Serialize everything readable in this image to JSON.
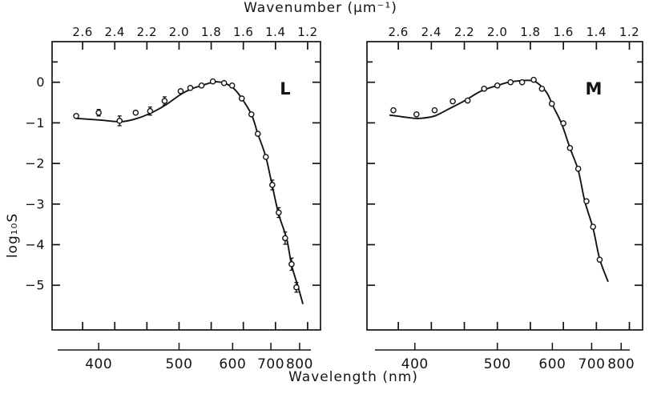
{
  "figure": {
    "top_axis_title": "Wavenumber (μm⁻¹)",
    "bottom_axis_title": "Wavelength (nm)",
    "y_axis_title": "log₁₀S",
    "panel_left_label": "L",
    "panel_right_label": "M",
    "ink_color": "#141414",
    "background_color": "#ffffff"
  },
  "chart_data": [
    {
      "type": "scatter",
      "panel": "L",
      "top_axis_title": "Wavenumber (μm⁻¹)",
      "bottom_axis_title": "Wavelength (nm)",
      "ylabel": "log10 S",
      "x_unit": "μm⁻¹",
      "top_ticks": [
        2.6,
        2.4,
        2.2,
        2.0,
        1.8,
        1.6,
        1.4,
        1.2
      ],
      "y_ticks": [
        0,
        -1,
        -2,
        -3,
        -4,
        -5
      ],
      "y_minor_ticks": [
        0.5
      ],
      "wavelength_ticks": [
        400,
        500,
        600,
        700,
        800
      ],
      "xlim": [
        2.79,
        1.12
      ],
      "ylim": [
        -6.1,
        1.0
      ],
      "grid": false,
      "points": [
        {
          "wavenumber": 2.64,
          "log10S": -0.83,
          "err": 0
        },
        {
          "wavenumber": 2.5,
          "log10S": -0.75,
          "err": 0.08
        },
        {
          "wavenumber": 2.37,
          "log10S": -0.95,
          "err": 0.12
        },
        {
          "wavenumber": 2.27,
          "log10S": -0.75,
          "err": 0
        },
        {
          "wavenumber": 2.18,
          "log10S": -0.71,
          "err": 0.1
        },
        {
          "wavenumber": 2.09,
          "log10S": -0.46,
          "err": 0.1
        },
        {
          "wavenumber": 1.99,
          "log10S": -0.22,
          "err": 0
        },
        {
          "wavenumber": 1.93,
          "log10S": -0.14,
          "err": 0
        },
        {
          "wavenumber": 1.86,
          "log10S": -0.08,
          "err": 0
        },
        {
          "wavenumber": 1.79,
          "log10S": 0.02,
          "err": 0
        },
        {
          "wavenumber": 1.72,
          "log10S": -0.02,
          "err": 0
        },
        {
          "wavenumber": 1.67,
          "log10S": -0.08,
          "err": 0
        },
        {
          "wavenumber": 1.61,
          "log10S": -0.4,
          "err": 0
        },
        {
          "wavenumber": 1.55,
          "log10S": -0.79,
          "err": 0
        },
        {
          "wavenumber": 1.51,
          "log10S": -1.27,
          "err": 0
        },
        {
          "wavenumber": 1.46,
          "log10S": -1.84,
          "err": 0
        },
        {
          "wavenumber": 1.42,
          "log10S": -2.53,
          "err": 0.12
        },
        {
          "wavenumber": 1.38,
          "log10S": -3.21,
          "err": 0.12
        },
        {
          "wavenumber": 1.34,
          "log10S": -3.84,
          "err": 0.15
        },
        {
          "wavenumber": 1.3,
          "log10S": -4.48,
          "err": 0.15
        },
        {
          "wavenumber": 1.27,
          "log10S": -5.05,
          "err": 0.12
        }
      ],
      "curve": [
        [
          2.64,
          -0.89
        ],
        [
          2.49,
          -0.93
        ],
        [
          2.36,
          -0.97
        ],
        [
          2.26,
          -0.89
        ],
        [
          2.16,
          -0.73
        ],
        [
          2.08,
          -0.55
        ],
        [
          1.99,
          -0.3
        ],
        [
          1.92,
          -0.16
        ],
        [
          1.86,
          -0.08
        ],
        [
          1.79,
          0.0
        ],
        [
          1.76,
          0.01
        ],
        [
          1.72,
          -0.02
        ],
        [
          1.67,
          -0.12
        ],
        [
          1.62,
          -0.34
        ],
        [
          1.55,
          -0.79
        ],
        [
          1.51,
          -1.27
        ],
        [
          1.46,
          -1.84
        ],
        [
          1.42,
          -2.55
        ],
        [
          1.38,
          -3.25
        ],
        [
          1.33,
          -3.86
        ],
        [
          1.3,
          -4.5
        ],
        [
          1.26,
          -5.03
        ],
        [
          1.23,
          -5.45
        ]
      ]
    },
    {
      "type": "scatter",
      "panel": "M",
      "top_axis_title": "Wavenumber (μm⁻¹)",
      "bottom_axis_title": "Wavelength (nm)",
      "ylabel": "log10 S",
      "x_unit": "μm⁻¹",
      "top_ticks": [
        2.6,
        2.4,
        2.2,
        2.0,
        1.8,
        1.6,
        1.4,
        1.2
      ],
      "y_ticks": [
        0,
        -1,
        -2,
        -3,
        -4,
        -5
      ],
      "y_minor_ticks": [
        0.5
      ],
      "wavelength_ticks": [
        400,
        500,
        600,
        700,
        800
      ],
      "xlim": [
        2.79,
        1.12
      ],
      "ylim": [
        -6.1,
        1.0
      ],
      "grid": false,
      "points": [
        {
          "wavenumber": 2.63,
          "log10S": -0.69,
          "err": 0
        },
        {
          "wavenumber": 2.49,
          "log10S": -0.79,
          "err": 0
        },
        {
          "wavenumber": 2.38,
          "log10S": -0.69,
          "err": 0
        },
        {
          "wavenumber": 2.27,
          "log10S": -0.47,
          "err": 0
        },
        {
          "wavenumber": 2.18,
          "log10S": -0.45,
          "err": 0
        },
        {
          "wavenumber": 2.08,
          "log10S": -0.16,
          "err": 0
        },
        {
          "wavenumber": 2.0,
          "log10S": -0.08,
          "err": 0
        },
        {
          "wavenumber": 1.92,
          "log10S": 0.0,
          "err": 0
        },
        {
          "wavenumber": 1.85,
          "log10S": 0.0,
          "err": 0
        },
        {
          "wavenumber": 1.78,
          "log10S": 0.06,
          "err": 0
        },
        {
          "wavenumber": 1.73,
          "log10S": -0.16,
          "err": 0
        },
        {
          "wavenumber": 1.67,
          "log10S": -0.53,
          "err": 0
        },
        {
          "wavenumber": 1.6,
          "log10S": -1.01,
          "err": 0
        },
        {
          "wavenumber": 1.56,
          "log10S": -1.62,
          "err": 0
        },
        {
          "wavenumber": 1.51,
          "log10S": -2.13,
          "err": 0
        },
        {
          "wavenumber": 1.46,
          "log10S": -2.93,
          "err": 0
        },
        {
          "wavenumber": 1.42,
          "log10S": -3.56,
          "err": 0
        },
        {
          "wavenumber": 1.38,
          "log10S": -4.37,
          "err": 0
        }
      ],
      "curve": [
        [
          2.65,
          -0.81
        ],
        [
          2.54,
          -0.87
        ],
        [
          2.47,
          -0.89
        ],
        [
          2.38,
          -0.83
        ],
        [
          2.3,
          -0.67
        ],
        [
          2.2,
          -0.46
        ],
        [
          2.1,
          -0.22
        ],
        [
          2.0,
          -0.08
        ],
        [
          1.93,
          0.0
        ],
        [
          1.85,
          0.04
        ],
        [
          1.79,
          0.04
        ],
        [
          1.75,
          -0.04
        ],
        [
          1.7,
          -0.26
        ],
        [
          1.66,
          -0.61
        ],
        [
          1.61,
          -1.03
        ],
        [
          1.56,
          -1.62
        ],
        [
          1.51,
          -2.17
        ],
        [
          1.47,
          -2.93
        ],
        [
          1.42,
          -3.6
        ],
        [
          1.38,
          -4.35
        ],
        [
          1.33,
          -4.9
        ]
      ]
    }
  ]
}
